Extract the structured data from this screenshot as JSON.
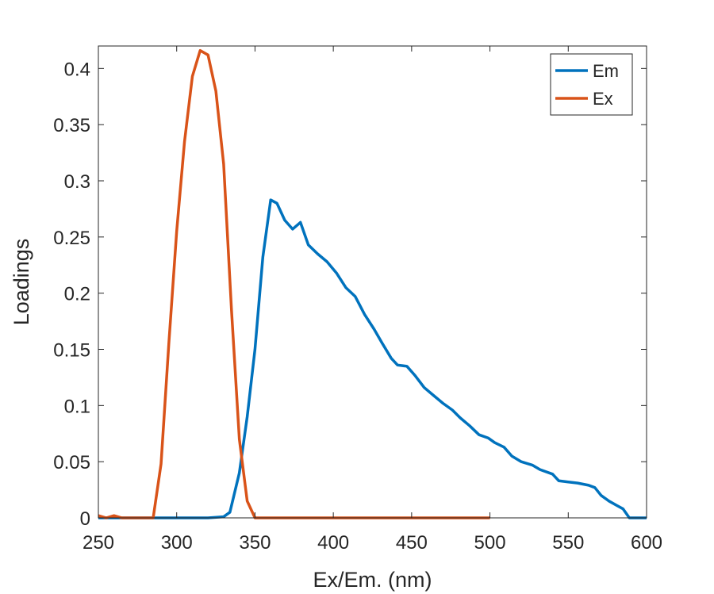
{
  "chart_data": {
    "type": "line",
    "xlabel": "Ex/Em. (nm)",
    "ylabel": "Loadings",
    "xlim": [
      250,
      600
    ],
    "ylim": [
      0,
      0.42
    ],
    "xticks": [
      250,
      300,
      350,
      400,
      450,
      500,
      550,
      600
    ],
    "yticks": [
      0,
      0.05,
      0.1,
      0.15,
      0.2,
      0.25,
      0.3,
      0.35,
      0.4
    ],
    "ytick_labels": [
      "0",
      "0.05",
      "0.1",
      "0.15",
      "0.2",
      "0.25",
      "0.3",
      "0.35",
      "0.4"
    ],
    "grid": false,
    "legend_position": "top-right",
    "series": [
      {
        "name": "Em",
        "color": "#0072BD",
        "x": [
          250,
          300,
          320,
          330,
          334,
          340,
          345,
          350,
          355,
          360,
          364,
          369,
          374,
          379,
          384,
          390,
          396,
          402,
          408,
          414,
          420,
          426,
          431,
          437,
          441,
          447,
          452,
          458,
          464,
          470,
          476,
          481,
          487,
          493,
          499,
          503,
          509,
          514,
          520,
          527,
          532,
          540,
          544,
          550,
          556,
          563,
          567,
          571,
          576,
          581,
          585,
          589,
          600
        ],
        "y": [
          0,
          0,
          0,
          0.001,
          0.005,
          0.04,
          0.09,
          0.15,
          0.232,
          0.283,
          0.28,
          0.265,
          0.257,
          0.263,
          0.243,
          0.235,
          0.228,
          0.218,
          0.205,
          0.197,
          0.181,
          0.168,
          0.156,
          0.142,
          0.136,
          0.135,
          0.127,
          0.116,
          0.109,
          0.102,
          0.096,
          0.089,
          0.082,
          0.074,
          0.071,
          0.067,
          0.063,
          0.055,
          0.05,
          0.047,
          0.043,
          0.039,
          0.033,
          0.032,
          0.031,
          0.029,
          0.027,
          0.02,
          0.015,
          0.011,
          0.008,
          0,
          0
        ]
      },
      {
        "name": "Ex",
        "color": "#D95319",
        "x": [
          250,
          255,
          260,
          265,
          270,
          275,
          280,
          285,
          290,
          295,
          300,
          305,
          310,
          315,
          320,
          325,
          330,
          335,
          340,
          345,
          350,
          355,
          360,
          400,
          450,
          500
        ],
        "y": [
          0.002,
          0,
          0.002,
          0,
          0,
          0,
          0,
          0,
          0.048,
          0.155,
          0.255,
          0.335,
          0.393,
          0.416,
          0.412,
          0.38,
          0.315,
          0.185,
          0.07,
          0.015,
          0,
          0,
          0,
          0,
          0,
          0
        ]
      }
    ]
  }
}
